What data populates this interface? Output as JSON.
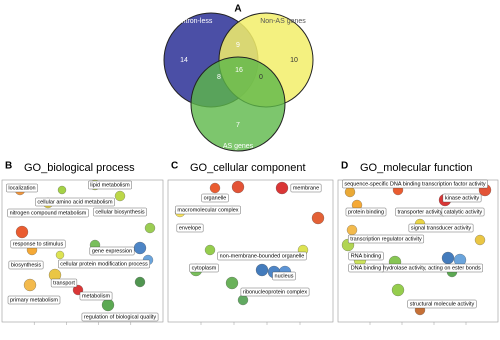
{
  "venn": {
    "label": "A",
    "sets": [
      "Intron-less",
      "Non-AS genes",
      "AS genes"
    ],
    "regions": {
      "intron_only": "14",
      "intron_nonas": "9",
      "nonas_only": "10",
      "intron_as": "8",
      "all": "16",
      "nonas_as": "0",
      "as_only": "7"
    }
  },
  "panels": [
    {
      "label": "B",
      "title": "GO_biological process",
      "terms": [
        "localization",
        "lipid metabolism",
        "cellular amino acid metabolism",
        "nitrogen compound metabolism",
        "cellular biosynthesis",
        "response to stimulus",
        "gene expression",
        "biosynthesis",
        "cellular protein modification process",
        "transport",
        "metabolism",
        "primary metabolism",
        "regulation of biological quality"
      ]
    },
    {
      "label": "C",
      "title": "GO_cellular component",
      "terms": [
        "organelle",
        "membrane",
        "macromolecular complex",
        "envelope",
        "non-membrane-bounded organelle",
        "cytoplasm",
        "nucleus",
        "ribonucleoprotein complex"
      ]
    },
    {
      "label": "D",
      "title": "GO_molecular function",
      "terms": [
        "sequence-specific DNA binding transcription factor activity",
        "kinase activity",
        "protein binding",
        "transporter activity",
        "catalytic activity",
        "signal transducer activity",
        "transcription regulator activity",
        "RNA binding",
        "hydrolase activity, acting on ester bonds",
        "DNA binding",
        "structural molecule activity"
      ]
    }
  ]
}
